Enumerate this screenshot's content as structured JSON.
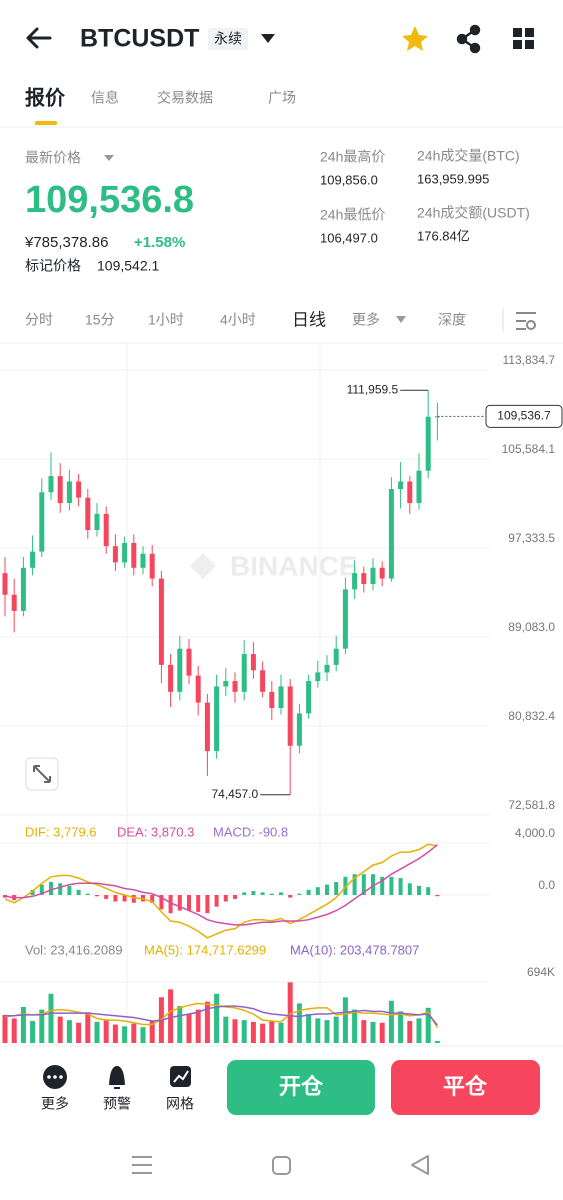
{
  "header": {
    "symbol": "BTCUSDT",
    "badge": "永续"
  },
  "tabs": [
    "报价",
    "信息",
    "交易数据",
    "广场"
  ],
  "ticker": {
    "last_price_label": "最新价格",
    "last_price": "109,536.8",
    "cny": "¥785,378.86",
    "change": "+1.58%",
    "mark_label": "标记价格",
    "mark_price": "109,542.1",
    "stats": [
      {
        "label": "24h最高价",
        "value": "109,856.0"
      },
      {
        "label": "24h成交量(BTC)",
        "value": "163,959.995"
      },
      {
        "label": "24h最低价",
        "value": "106,497.0"
      },
      {
        "label": "24h成交额(USDT)",
        "value": "176.84亿"
      }
    ]
  },
  "intervals": [
    "分时",
    "15分",
    "1小时",
    "4小时",
    "日线",
    "更多",
    "深度"
  ],
  "chart_data": {
    "type": "candlestick",
    "colors": {
      "up": "#2ebd85",
      "down": "#f6465d"
    },
    "open": [
      95000,
      93000,
      91500,
      95500,
      97000,
      102500,
      104000,
      101500,
      103500,
      102000,
      99000,
      100500,
      97500,
      96000,
      97800,
      95500,
      96800,
      94500,
      86500,
      84000,
      88000,
      85500,
      83000,
      78500,
      84500,
      85000,
      84000,
      87500,
      86000,
      84000,
      82500,
      84500,
      79000,
      82000,
      85000,
      85800,
      86500,
      88000,
      93500,
      95000,
      94000,
      95500,
      94500,
      102800,
      103500,
      101500,
      104500,
      109500
    ],
    "high": [
      96500,
      94500,
      96500,
      98500,
      103800,
      106200,
      105200,
      104600,
      104200,
      102800,
      101500,
      101200,
      98600,
      98400,
      98600,
      97500,
      97600,
      95200,
      87500,
      89200,
      88900,
      86400,
      83800,
      85600,
      86200,
      85800,
      88800,
      88600,
      86800,
      85000,
      85600,
      85200,
      82900,
      85600,
      86900,
      87400,
      89200,
      94600,
      96200,
      95600,
      96400,
      96100,
      103900,
      105300,
      104000,
      106100,
      111959.5,
      110800
    ],
    "low": [
      91000,
      89500,
      91000,
      94800,
      96500,
      101800,
      100600,
      100800,
      101200,
      98200,
      98400,
      96800,
      95200,
      95500,
      94800,
      94900,
      93800,
      84800,
      82600,
      83200,
      84700,
      81800,
      76200,
      77800,
      83600,
      83000,
      83200,
      85200,
      83500,
      81400,
      81900,
      74457,
      78300,
      81500,
      84400,
      85000,
      85900,
      87500,
      92600,
      93200,
      93400,
      93800,
      94200,
      101000,
      100500,
      100900,
      103800,
      107300
    ],
    "close": [
      93000,
      91500,
      95500,
      97000,
      102500,
      104000,
      101500,
      103500,
      102000,
      99000,
      100500,
      97500,
      96000,
      97800,
      95500,
      96800,
      94500,
      86500,
      84000,
      88000,
      85500,
      83000,
      78500,
      84500,
      85000,
      84000,
      87500,
      86000,
      84000,
      82500,
      84500,
      79000,
      82000,
      85000,
      85800,
      86500,
      88000,
      93500,
      95000,
      94000,
      95500,
      94500,
      102800,
      103500,
      101500,
      104500,
      109500,
      109536.7
    ],
    "ylim": [
      72581.8,
      116152
    ],
    "yticks": [
      {
        "value": 113834.7,
        "label": "113,834.7"
      },
      {
        "value": 105584.1,
        "label": "105,584.1"
      },
      {
        "value": 97333.5,
        "label": "97,333.5"
      },
      {
        "value": 89083,
        "label": "89,083.0"
      },
      {
        "value": 80832.4,
        "label": "80,832.4"
      },
      {
        "value": 72581.8,
        "label": "72,581.8"
      }
    ],
    "grid": true,
    "last_price": {
      "value": 109536.7,
      "label": "109,536.7"
    },
    "max_annotation": {
      "value": 111959.5,
      "label": "111,959.5"
    },
    "min_annotation": {
      "value": 74457,
      "label": "74,457.0"
    },
    "watermark": "BINANCE",
    "macd": {
      "ylim": [
        -3462,
        5615
      ],
      "yticks": [
        {
          "value": 4000,
          "label": "4,000.0"
        },
        {
          "value": 0,
          "label": "0.0"
        }
      ],
      "series": [
        {
          "name": "DIF: 3,779.6",
          "color": "#e6b000",
          "values": [
            -300,
            -600,
            -200,
            300,
            900,
            1400,
            1500,
            1500,
            1300,
            1000,
            800,
            500,
            200,
            0,
            -200,
            -300,
            -500,
            -1300,
            -2000,
            -2100,
            -2400,
            -2800,
            -3300,
            -3000,
            -2700,
            -2600,
            -2100,
            -1900,
            -1900,
            -2000,
            -1800,
            -2200,
            -1900,
            -1500,
            -1100,
            -700,
            -200,
            600,
            1300,
            1800,
            2300,
            2500,
            3000,
            3300,
            3300,
            3500,
            3900,
            3779.6
          ]
        },
        {
          "name": "DEA: 3,870.3",
          "color": "#d14ea8",
          "values": [
            -100,
            -200,
            -200,
            -100,
            100,
            400,
            600,
            800,
            900,
            900,
            900,
            800,
            700,
            500,
            400,
            200,
            100,
            -200,
            -600,
            -900,
            -1200,
            -1500,
            -1900,
            -2100,
            -2200,
            -2300,
            -2300,
            -2200,
            -2100,
            -2100,
            -2000,
            -2000,
            -2000,
            -1900,
            -1700,
            -1500,
            -1200,
            -800,
            -300,
            200,
            700,
            1100,
            1600,
            2000,
            2400,
            2800,
            3300,
            3870.3
          ]
        }
      ],
      "histogram": {
        "name": "MACD: -90.8",
        "color": "#9b6fd0",
        "values": [
          -200,
          -400,
          0,
          400,
          800,
          1000,
          900,
          700,
          400,
          100,
          -100,
          -300,
          -500,
          -500,
          -600,
          -500,
          -600,
          -1100,
          -1400,
          -1200,
          -1200,
          -1300,
          -1400,
          -900,
          -500,
          -300,
          200,
          300,
          200,
          100,
          200,
          -200,
          100,
          400,
          600,
          800,
          1000,
          1400,
          1600,
          1600,
          1600,
          1400,
          1400,
          1300,
          900,
          700,
          600,
          -90.8
        ]
      }
    },
    "volume": {
      "name": "Vol: 23,416.2089",
      "ylim": [
        0,
        944000
      ],
      "yticks": [
        {
          "value": 694000,
          "label": "694K"
        }
      ],
      "values": [
        320000,
        280000,
        410000,
        250000,
        380000,
        560000,
        300000,
        260000,
        230000,
        350000,
        240000,
        270000,
        210000,
        190000,
        220000,
        180000,
        250000,
        520000,
        610000,
        420000,
        330000,
        380000,
        470000,
        560000,
        300000,
        270000,
        260000,
        240000,
        220000,
        250000,
        230000,
        690000,
        450000,
        330000,
        280000,
        260000,
        300000,
        520000,
        380000,
        260000,
        240000,
        230000,
        480000,
        360000,
        250000,
        280000,
        400000,
        23416.2089
      ],
      "series": [
        {
          "name": "MA(5): 174,717.6299",
          "color": "#e6b000",
          "values": [
            300000,
            310000,
            330000,
            320000,
            330000,
            370000,
            380000,
            370000,
            350000,
            330000,
            280000,
            260000,
            260000,
            250000,
            230000,
            210000,
            210000,
            270000,
            360000,
            400000,
            430000,
            450000,
            440000,
            430000,
            410000,
            400000,
            370000,
            330000,
            260000,
            250000,
            240000,
            330000,
            370000,
            390000,
            400000,
            400000,
            320000,
            330000,
            350000,
            340000,
            340000,
            330000,
            320000,
            330000,
            310000,
            320000,
            350000,
            174717.6299
          ]
        },
        {
          "name": "MA(10): 203,478.7807",
          "color": "#8d63c9",
          "values": [
            310000,
            310000,
            320000,
            320000,
            320000,
            340000,
            340000,
            340000,
            340000,
            340000,
            330000,
            320000,
            310000,
            300000,
            290000,
            270000,
            250000,
            260000,
            290000,
            310000,
            330000,
            350000,
            390000,
            410000,
            420000,
            420000,
            410000,
            390000,
            350000,
            330000,
            320000,
            310000,
            300000,
            320000,
            330000,
            330000,
            340000,
            350000,
            360000,
            370000,
            360000,
            360000,
            340000,
            340000,
            330000,
            320000,
            330000,
            203478.7807
          ]
        }
      ]
    }
  },
  "bottom_bar": {
    "actions": [
      "更多",
      "预警",
      "网格"
    ],
    "open": "开仓",
    "close": "平仓"
  }
}
